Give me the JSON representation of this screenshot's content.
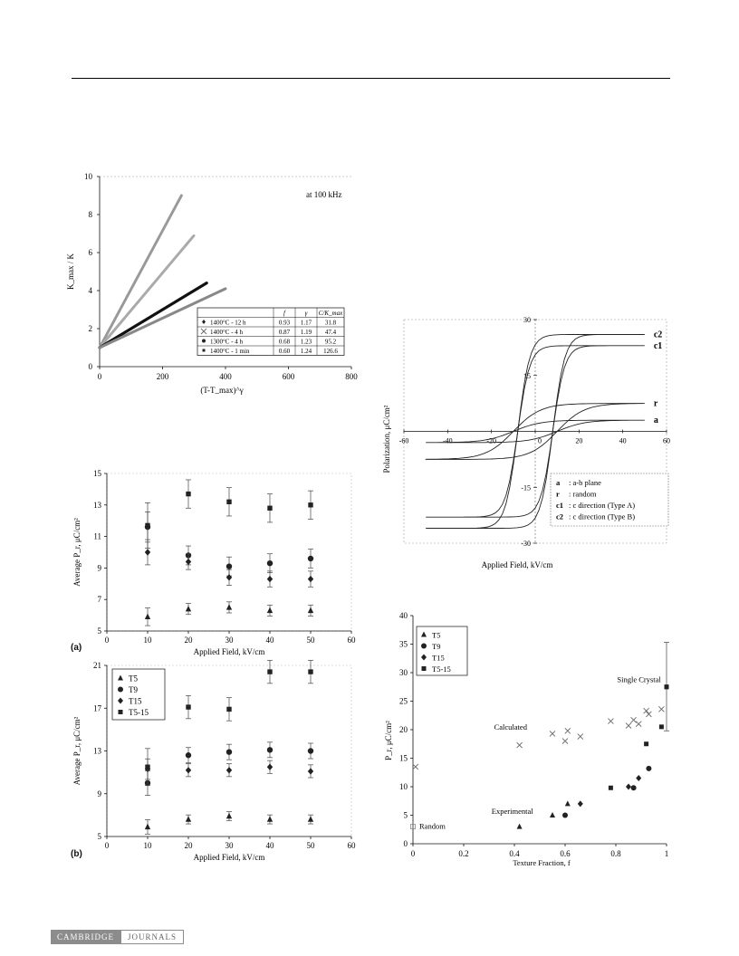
{
  "footer": {
    "logo_left": "CAMBRIDGE",
    "logo_right": "JOURNALS"
  },
  "colors": {
    "ink": "#111111",
    "gray_marker": "#888888",
    "dark_marker": "#222222"
  },
  "chart_data": [
    {
      "type": "line",
      "annotation": "at 100 kHz",
      "xlabel": "(T-T_max)^γ",
      "ylabel": "K_max / K",
      "xlim": [
        0,
        800
      ],
      "ylim": [
        0,
        10
      ],
      "xticks": [
        "0",
        "200",
        "400",
        "600",
        "800"
      ],
      "yticks": [
        "0",
        "2",
        "4",
        "6",
        "8",
        "10"
      ],
      "table": {
        "header": [
          "",
          "f",
          "γ",
          "C/K_max"
        ],
        "rows": [
          [
            "1400°C - 12 h",
            "0.93",
            "1.17",
            "31.8"
          ],
          [
            "1400°C - 4 h",
            "0.87",
            "1.19",
            "47.4"
          ],
          [
            "1300°C - 4 h",
            "0.68",
            "1.23",
            "95.2"
          ],
          [
            "1400°C - 1 min",
            "0.60",
            "1.24",
            "126.6"
          ]
        ]
      },
      "series": [
        {
          "name": "1400°C - 12 h",
          "x": [
            0,
            260
          ],
          "y": [
            1,
            9.0
          ]
        },
        {
          "name": "1400°C - 4 h",
          "x": [
            0,
            300
          ],
          "y": [
            1,
            6.9
          ]
        },
        {
          "name": "1300°C - 4 h",
          "x": [
            0,
            340
          ],
          "y": [
            1,
            4.4
          ]
        },
        {
          "name": "1400°C - 1 min",
          "x": [
            0,
            400
          ],
          "y": [
            1,
            4.1
          ]
        }
      ]
    },
    {
      "type": "scatter",
      "panel": "(a)",
      "xlabel": "Applied Field, kV/cm",
      "ylabel": "Average P_r, μC/cm²",
      "xlim": [
        0,
        60
      ],
      "ylim": [
        5,
        15
      ],
      "xticks": [
        "0",
        "10",
        "20",
        "30",
        "40",
        "50",
        "60"
      ],
      "yticks": [
        "5",
        "7",
        "9",
        "11",
        "13",
        "15"
      ],
      "categories": [
        10,
        20,
        30,
        40,
        50
      ],
      "series": [
        {
          "name": "T5",
          "marker": "triangle",
          "values": [
            5.9,
            6.4,
            6.5,
            6.3,
            6.3
          ]
        },
        {
          "name": "T9",
          "marker": "circle",
          "values": [
            11.6,
            9.8,
            9.1,
            9.3,
            9.6
          ]
        },
        {
          "name": "T15",
          "marker": "diamond",
          "values": [
            10.0,
            9.4,
            8.4,
            8.3,
            8.3
          ]
        },
        {
          "name": "T5-15",
          "marker": "square",
          "values": [
            11.7,
            13.7,
            13.2,
            12.8,
            13.0
          ]
        }
      ]
    },
    {
      "type": "scatter",
      "panel": "(b)",
      "xlabel": "Applied Field, kV/cm",
      "ylabel": "Average P_r, μC/cm²",
      "xlim": [
        0,
        60
      ],
      "ylim": [
        5,
        21
      ],
      "xticks": [
        "0",
        "10",
        "20",
        "30",
        "40",
        "50",
        "60"
      ],
      "yticks": [
        "5",
        "9",
        "13",
        "17",
        "21"
      ],
      "categories": [
        10,
        20,
        30,
        40,
        50
      ],
      "series": [
        {
          "name": "T5",
          "marker": "triangle",
          "values": [
            5.9,
            6.6,
            6.9,
            6.6,
            6.6
          ]
        },
        {
          "name": "T9",
          "marker": "circle",
          "values": [
            10.0,
            12.6,
            12.9,
            13.1,
            13.0
          ]
        },
        {
          "name": "T15",
          "marker": "diamond",
          "values": [
            11.3,
            11.2,
            11.2,
            11.5,
            11.1
          ]
        },
        {
          "name": "T5-15",
          "marker": "square",
          "values": [
            11.5,
            17.1,
            16.9,
            20.4,
            20.4
          ]
        }
      ]
    },
    {
      "type": "line",
      "xlabel": "Applied Field, kV/cm",
      "ylabel": "Polarization, μC/cm²",
      "xlim": [
        -60,
        60
      ],
      "ylim": [
        -30,
        30
      ],
      "xticks": [
        "-60",
        "-40",
        "-20",
        "0",
        "20",
        "40",
        "60"
      ],
      "yticks": [
        "30",
        "15",
        "0",
        "-15",
        "-30"
      ],
      "curve_labels": [
        "c2",
        "c1",
        "r",
        "a"
      ],
      "legend": [
        {
          "key": "a",
          "text": ": a-b plane"
        },
        {
          "key": "r",
          "text": ": random"
        },
        {
          "key": "c1",
          "text": ": c direction (Type A)"
        },
        {
          "key": "c2",
          "text": ": c direction (Type B)"
        }
      ],
      "series": [
        {
          "name": "c2",
          "xmax": 50,
          "saturation": 26,
          "remanent": 20,
          "coercive": 8
        },
        {
          "name": "c1",
          "xmax": 50,
          "saturation": 23,
          "remanent": 13,
          "coercive": 8
        },
        {
          "name": "r",
          "xmax": 50,
          "saturation": 7.5,
          "remanent": 2.5,
          "coercive": 10
        },
        {
          "name": "a",
          "xmax": 50,
          "saturation": 3,
          "remanent": 1,
          "coercive": 10
        }
      ]
    },
    {
      "type": "scatter",
      "xlabel": "Texture Fraction, f",
      "ylabel": "P_r, μC/cm²",
      "xlim": [
        0,
        1
      ],
      "ylim": [
        0,
        40
      ],
      "xticks": [
        "0",
        "0.2",
        "0.4",
        "0.6",
        "0.8",
        "1"
      ],
      "yticks": [
        "0",
        "5",
        "10",
        "15",
        "20",
        "25",
        "30",
        "35",
        "40"
      ],
      "annotations": [
        "Single Crystal",
        "Calculated",
        "Experimental",
        "Random"
      ],
      "series": [
        {
          "name": "T5",
          "marker": "triangle",
          "x": [
            0.42,
            0.55,
            0.61
          ],
          "y": [
            3.0,
            5.0,
            7.0
          ]
        },
        {
          "name": "T9",
          "marker": "circle",
          "x": [
            0.6,
            0.87,
            0.93
          ],
          "y": [
            5.0,
            9.8,
            13.2
          ]
        },
        {
          "name": "T15",
          "marker": "diamond",
          "x": [
            0.66,
            0.85,
            0.89
          ],
          "y": [
            7.0,
            10.0,
            11.5
          ]
        },
        {
          "name": "T5-15",
          "marker": "square",
          "x": [
            0.78,
            0.92,
            0.98,
            1.0
          ],
          "y": [
            9.8,
            17.5,
            20.5,
            27.5
          ]
        },
        {
          "name": "Calculated",
          "marker": "cross",
          "x": [
            0.01,
            0.42,
            0.55,
            0.6,
            0.61,
            0.66,
            0.78,
            0.85,
            0.87,
            0.89,
            0.92,
            0.93,
            0.98
          ],
          "y": [
            13.5,
            17.3,
            19.3,
            18.0,
            19.8,
            18.8,
            21.5,
            20.7,
            21.7,
            21.0,
            23.3,
            22.7,
            23.6
          ]
        },
        {
          "name": "Random",
          "marker": "open-square",
          "x": [
            0.0
          ],
          "y": [
            3.0
          ]
        },
        {
          "name": "Single Crystal",
          "marker": "square",
          "x": [
            1.0
          ],
          "y": [
            27.5
          ]
        }
      ]
    }
  ]
}
